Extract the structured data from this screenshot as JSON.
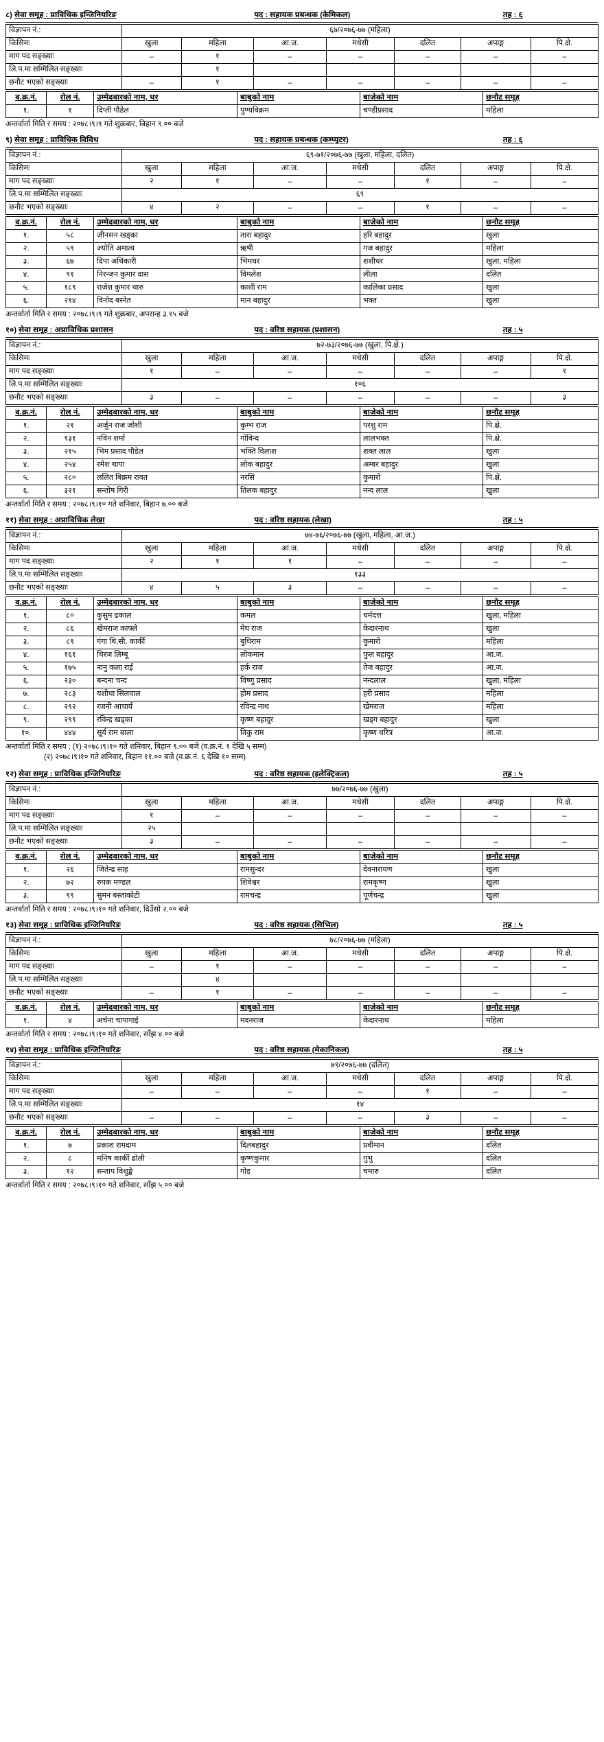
{
  "quota_headers": [
    "खुला",
    "महिला",
    "आ.ज.",
    "मधेसी",
    "दलित",
    "अपाङ्ग",
    "पि.क्षे."
  ],
  "quota_row_labels": [
    "माग पद सङ्ख्याः",
    "लि.प.मा सम्मिलित सङ्ख्याः",
    "छनौट भएको सङ्ख्याः"
  ],
  "result_headers": [
    "व.क्र.नं.",
    "रोल नं.",
    "उम्मेदवारको नाम, थर",
    "बाबुको नाम",
    "बाजेको नाम",
    "छनौट समूह"
  ],
  "ad_label": "विज्ञापन नं.:",
  "kisim_label": "किसिमः",
  "interview_label": "अन्तर्वार्ता मिति र समय :",
  "sections": [
    {
      "num": "८)",
      "service": "सेवा समूह : प्राविधिक इन्जिनियरिङ",
      "post": "पद : सहायक प्रबन्धक (केमिकल)",
      "level": "तह : ६",
      "ad": "६७/२०७६-७७ (महिला)",
      "quota": [
        [
          "–",
          "१",
          "–",
          "–",
          "–",
          "–",
          "–"
        ],
        [
          "",
          "१",
          "",
          "",
          "",
          "",
          ""
        ],
        [
          "–",
          "१",
          "–",
          "–",
          "–",
          "–",
          "–"
        ]
      ],
      "lip_span": "१",
      "lip_mode": "col2",
      "results": [
        [
          "१.",
          "१",
          "दिप्ती पौडेल",
          "पुण्यविक्रम",
          "चण्डीप्रसाद",
          "महिला"
        ]
      ],
      "note": "२०७८।९।९ गते शुक्रबार, बिहान ९.०० बजे"
    },
    {
      "num": "९)",
      "service": "सेवा समूह : प्राविधिक विविध",
      "post": "पद : सहायक प्रबन्धक (कम्प्युटर)",
      "level": "तह : ६",
      "ad": "६९-७१/२०७६-७७ (खुला, महिला, दलित)",
      "quota": [
        [
          "२",
          "१",
          "–",
          "–",
          "१",
          "–",
          "–"
        ],
        [
          "",
          "",
          "",
          "",
          "",
          "",
          ""
        ],
        [
          "४",
          "२",
          "–",
          "–",
          "१",
          "–",
          "–"
        ]
      ],
      "lip_span": "६९",
      "results": [
        [
          "१.",
          "५८",
          "जीनसन खड्का",
          "तारा बहादुर",
          "हरि बहादुर",
          "खुला"
        ],
        [
          "२.",
          "५९",
          "ज्योति अमात्य",
          "ऋषी",
          "गज बहादुर",
          "महिला"
        ],
        [
          "३.",
          "६७",
          "दिपा अधिकारी",
          "भिमधर",
          "शशीधर",
          "खुला, महिला"
        ],
        [
          "४.",
          "९१",
          "निरन्जन कुमार दास",
          "विमलेश",
          "लीला",
          "दलित"
        ],
        [
          "५.",
          "१८९",
          "राजेश कुमार थारु",
          "काशी राम",
          "कालिका प्रसाद",
          "खुला"
        ],
        [
          "६.",
          "२१४",
          "विनोद बस्नेत",
          "मान बहादुर",
          "भक्त",
          "खुला"
        ]
      ],
      "note": "२०७८।९।९ गते शुक्रबार, अपरान्ह ३.१५ बजे"
    },
    {
      "num": "१०)",
      "service": "सेवा समूह : अप्राविधिक प्रशासन",
      "post": "पद : वरिष्ठ सहायक (प्रशासन)",
      "level": "तह : ५",
      "ad": "७२-७३/२०७६-७७ (खुला, पि.क्षे.)",
      "quota": [
        [
          "१",
          "–",
          "–",
          "–",
          "–",
          "–",
          "१"
        ],
        [
          "",
          "",
          "",
          "",
          "",
          "",
          ""
        ],
        [
          "३",
          "–",
          "–",
          "–",
          "–",
          "–",
          "३"
        ]
      ],
      "lip_span": "१०६",
      "results": [
        [
          "१.",
          "२१",
          "अर्जुन राज जोशी",
          "कुम्भ राज",
          "परशु राम",
          "पि.क्षे."
        ],
        [
          "२.",
          "१३१",
          "नविन शर्मा",
          "गोविन्द",
          "लालभक्त",
          "पि.क्षे."
        ],
        [
          "३.",
          "२१५",
          "भिम प्रसाद पौडेल",
          "भक्ति विलाश",
          "शक्त लाल",
          "खुला"
        ],
        [
          "४.",
          "२५४",
          "रमेश थापा",
          "लोक बहादुर",
          "अम्बर बहादुर",
          "खुला"
        ],
        [
          "५.",
          "२८०",
          "ललित बिक्रम रावत",
          "नरसिं",
          "कुमारो",
          "पि.क्षे."
        ],
        [
          "६.",
          "३२१",
          "सन्तोष गिरी",
          "तिलक बहादुर",
          "नन्द लाल",
          "खुला"
        ]
      ],
      "note": "२०७८।९।१० गते शनिवार, बिहान ७.०० बजे"
    },
    {
      "num": "११)",
      "service": "सेवा समूह : अप्राविधिक लेखा",
      "post": "पद : वरिष्ठ सहायक (लेखा)",
      "level": "तह : ५",
      "ad": "७४-७६/२०७६-७७ (खुला, महिला, आ.ज.)",
      "quota": [
        [
          "२",
          "१",
          "१",
          "–",
          "–",
          "–",
          "–"
        ],
        [
          "",
          "",
          "",
          "",
          "",
          "",
          ""
        ],
        [
          "४",
          "५",
          "३",
          "–",
          "–",
          "–",
          "–"
        ]
      ],
      "lip_span": "१३३",
      "results": [
        [
          "१.",
          "८०",
          "कुसुम ढकाल",
          "कमल",
          "धर्मदत्त",
          "खुला, महिला"
        ],
        [
          "२.",
          "८६",
          "खेमराज काफ्ले",
          "मेघ राज",
          "केदारनाथ",
          "खुला"
        ],
        [
          "३.",
          "८९",
          "गंगा थि.सी. कार्की",
          "बुधिराम",
          "कुमारो",
          "महिला"
        ],
        [
          "४.",
          "१६१",
          "धिरज लिम्बू",
          "लोकमान",
          "फुल बहादुर",
          "आ.ज."
        ],
        [
          "५.",
          "१७५",
          "नानु कला राई",
          "हर्क राज",
          "तेज बहादुर",
          "आ.ज."
        ],
        [
          "६.",
          "२३०",
          "बन्दना चन्द",
          "विष्णु प्रसाद",
          "नन्दलाल",
          "खुला, महिला"
        ],
        [
          "७.",
          "२८३",
          "यशोधा सिलवाल",
          "होम प्रसाद",
          "हरी प्रसाद",
          "महिला"
        ],
        [
          "८.",
          "२९२",
          "रजनी आचार्य",
          "रविन्द्र नाथ",
          "खेमराज",
          "महिला"
        ],
        [
          "९.",
          "२९९",
          "रविन्द्र खड्का",
          "कृष्ण बहादुर",
          "खड्ग बहादुर",
          "खुला"
        ],
        [
          "१०.",
          "४४४",
          "सूर्य राम बाला",
          "विकु राम",
          "कृष्ण धरित्र",
          "आ.ज."
        ]
      ],
      "note": "(१) २०७८।९।१० गते शनिवार, बिहान ९.०० बजे (व.क्र.नं. १ देखि ५ सम्म)",
      "note2": "(२) २०७८।९।१० गते शनिवार, बिहान ११.०० बजे (व.क्र.नं. ६ देखि १० सम्म)"
    },
    {
      "num": "१२)",
      "service": "सेवा समूह : प्राविधिक इन्जिनियरिङ",
      "post": "पद : वरिष्ठ सहायक (इलेक्ट्रिकल)",
      "level": "तह : ५",
      "ad": "७७/२०७६-७७ (खुला)",
      "quota": [
        [
          "१",
          "–",
          "–",
          "–",
          "–",
          "–",
          "–"
        ],
        [
          "",
          "",
          "",
          "",
          "",
          "",
          ""
        ],
        [
          "३",
          "–",
          "–",
          "–",
          "–",
          "–",
          "–"
        ]
      ],
      "lip_span": "२५",
      "lip_mode": "col1",
      "results": [
        [
          "१.",
          "२६",
          "जितेन्द्र साह",
          "रामसुन्दर",
          "देवनारायण",
          "खुला"
        ],
        [
          "२.",
          "७२",
          "रुपक मण्डल",
          "शिवेश्वर",
          "रामकृष्ण",
          "खुला"
        ],
        [
          "३.",
          "९९",
          "सुमन बस्ताकोटी",
          "रामचन्द्र",
          "पूर्णचन्द्र",
          "खुला"
        ]
      ],
      "note": "२०७८।९।१० गते शनिवार, दिउँसो २.०० बजे"
    },
    {
      "num": "१३)",
      "service": "सेवा समूह : प्राविधिक इन्जिनियरिङ",
      "post": "पद : वरिष्ठ सहायक (सिभिल)",
      "level": "तह : ५",
      "ad": "७८/२०७६-७७ (महिला)",
      "quota": [
        [
          "–",
          "१",
          "–",
          "–",
          "–",
          "–",
          "–"
        ],
        [
          "",
          "",
          "",
          "",
          "",
          "",
          ""
        ],
        [
          "–",
          "१",
          "–",
          "–",
          "–",
          "–",
          "–"
        ]
      ],
      "lip_span": "४",
      "lip_mode": "col2",
      "results": [
        [
          "१.",
          "४",
          "अर्चना चापागाई",
          "मदनराज",
          "केदारनाथ",
          "महिला"
        ]
      ],
      "note": "२०७८।९।१० गते शनिवार, साँझ ४.०० बजे"
    },
    {
      "num": "१४)",
      "service": "सेवा समूह : प्राविधिक इन्जिनियरिङ",
      "post": "पद : वरिष्ठ सहायक (मेकानिकल)",
      "level": "तह : ५",
      "ad": "७९/२०७६-७७ (दलित)",
      "quota": [
        [
          "–",
          "–",
          "–",
          "–",
          "१",
          "–",
          "–"
        ],
        [
          "",
          "",
          "",
          "",
          "",
          "",
          ""
        ],
        [
          "–",
          "–",
          "–",
          "–",
          "३",
          "–",
          "–"
        ]
      ],
      "lip_span": "१४",
      "results": [
        [
          "१.",
          "७",
          "प्रकाश रामदाम",
          "दिलबहादुर",
          "प्रवीमान",
          "दलित"
        ],
        [
          "२.",
          "८",
          "मनिष कार्की ढोली",
          "कृष्णकुमार",
          "गुभु",
          "दलित"
        ],
        [
          "३.",
          "१२",
          "सन्ताप विशुङ्खे",
          "गोड",
          "चमारु",
          "दलित"
        ]
      ],
      "note": "२०७८।९।१० गते शनिवार, साँझ ५.०० बजे"
    }
  ]
}
